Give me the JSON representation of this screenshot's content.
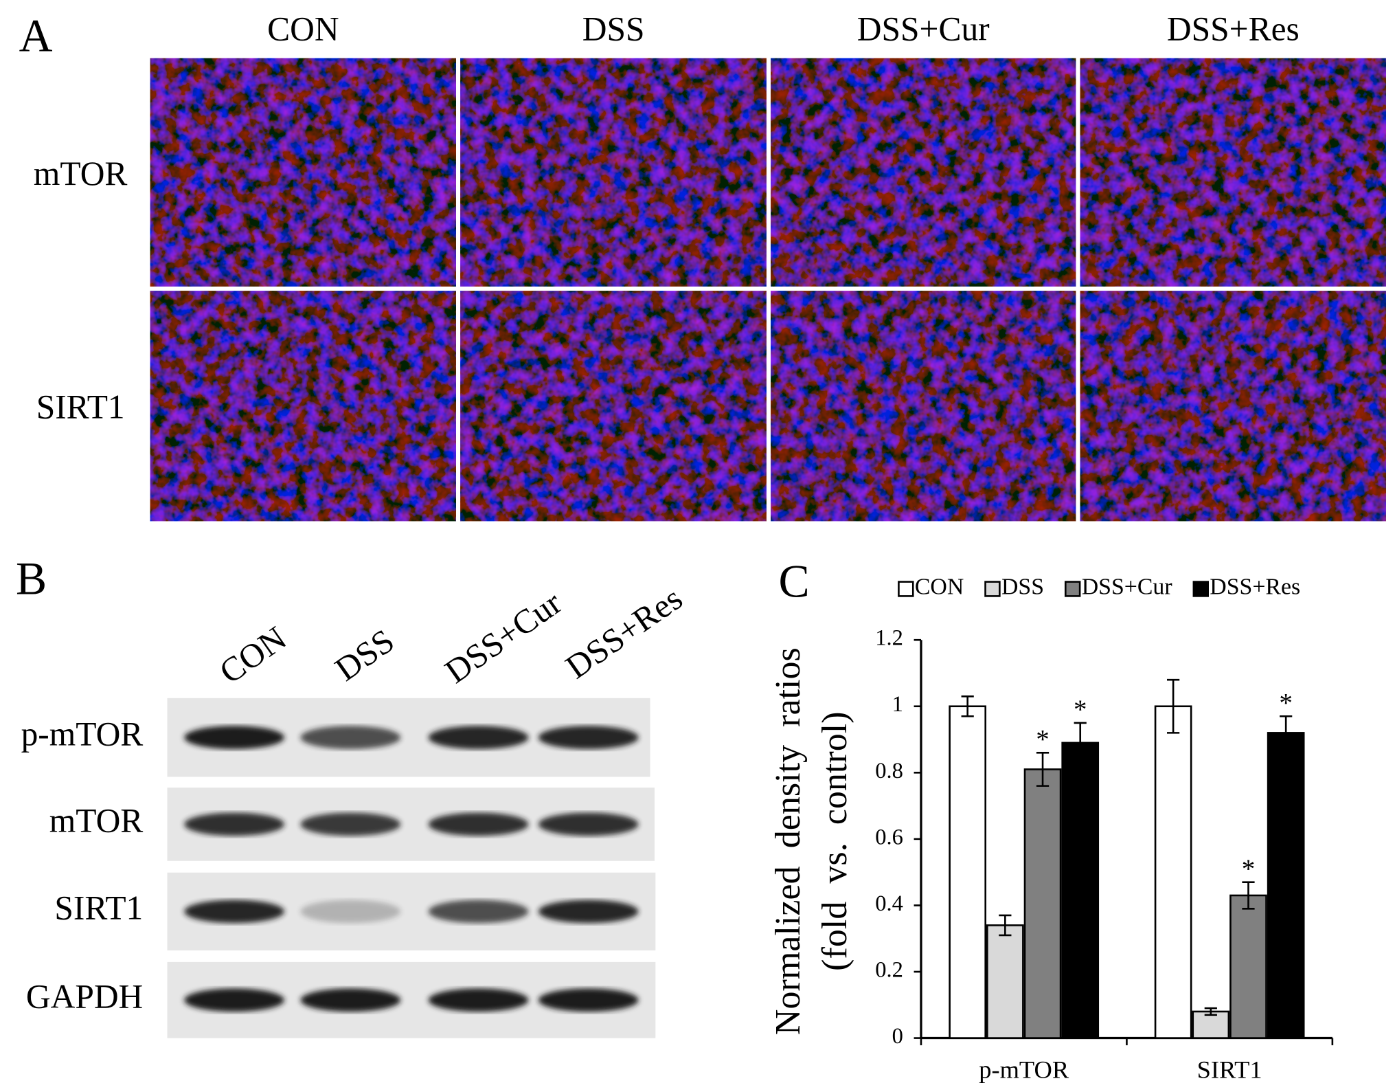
{
  "panel_a": {
    "label": "A",
    "columns": [
      "CON",
      "DSS",
      "DSS+Cur",
      "DSS+Res"
    ],
    "rows": [
      "mTOR",
      "SIRT1"
    ]
  },
  "panel_b": {
    "label": "B",
    "lanes": [
      "CON",
      "DSS",
      "DSS+Cur",
      "DSS+Res"
    ],
    "rows": [
      "p-mTOR",
      "mTOR",
      "SIRT1",
      "GAPDH"
    ]
  },
  "panel_c": {
    "label": "C"
  },
  "chart_data": {
    "type": "bar",
    "ylabel": [
      "Normalized density ratios",
      "(fold vs. control)"
    ],
    "categories": [
      "p-mTOR",
      "SIRT1"
    ],
    "series": [
      {
        "name": "CON",
        "color": "#ffffff",
        "values": [
          1.0,
          1.0
        ],
        "errors": [
          0.03,
          0.08
        ]
      },
      {
        "name": "DSS",
        "color": "#d9d9d9",
        "values": [
          0.34,
          0.08
        ],
        "errors": [
          0.03,
          0.01
        ]
      },
      {
        "name": "DSS+Cur",
        "color": "#808080",
        "values": [
          0.81,
          0.43
        ],
        "errors": [
          0.05,
          0.04
        ],
        "significance": [
          "*",
          "*"
        ]
      },
      {
        "name": "DSS+Res",
        "color": "#000000",
        "values": [
          0.89,
          0.92
        ],
        "errors": [
          0.06,
          0.05
        ],
        "significance": [
          "*",
          "*"
        ]
      }
    ],
    "ylim": [
      0,
      1.2
    ],
    "yticks": [
      0,
      0.2,
      0.4,
      0.6,
      0.8,
      1,
      1.2
    ],
    "legend": "top",
    "grid": false
  }
}
